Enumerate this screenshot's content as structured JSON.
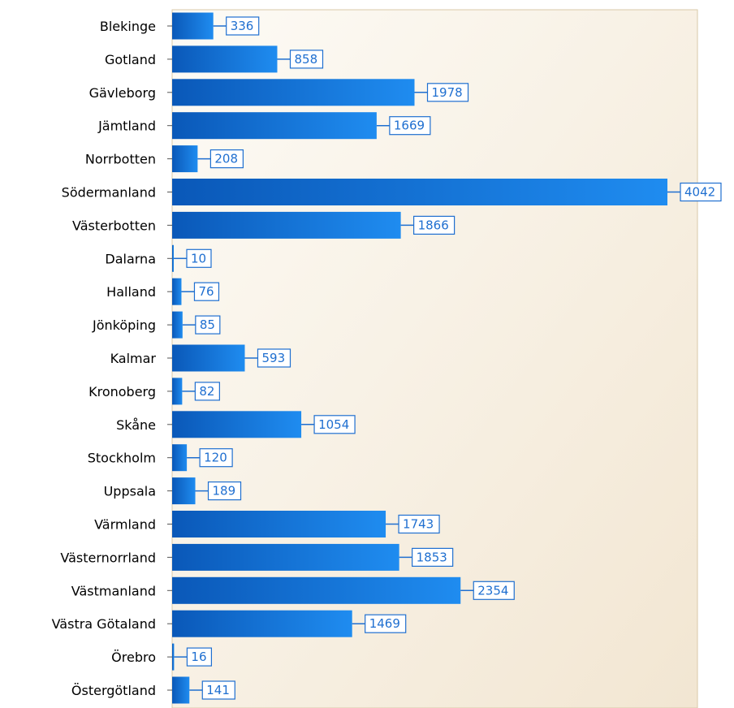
{
  "chart_data": {
    "type": "bar",
    "orientation": "horizontal",
    "categories": [
      "Blekinge",
      "Gotland",
      "Gävleborg",
      "Jämtland",
      "Norrbotten",
      "Södermanland",
      "Västerbotten",
      "Dalarna",
      "Halland",
      "Jönköping",
      "Kalmar",
      "Kronoberg",
      "Skåne",
      "Stockholm",
      "Uppsala",
      "Värmland",
      "Västernorrland",
      "Västmanland",
      "Västra Götaland",
      "Örebro",
      "Östergötland"
    ],
    "values": [
      336,
      858,
      1978,
      1669,
      208,
      4042,
      1866,
      10,
      76,
      85,
      593,
      82,
      1054,
      120,
      189,
      1743,
      1853,
      2354,
      1469,
      16,
      141
    ],
    "value_labels": [
      "336",
      "858",
      "1978",
      "1669",
      "208",
      "4042",
      "1866",
      "10",
      "76",
      "85",
      "593",
      "82",
      "1054",
      "120",
      "189",
      "1743",
      "1853",
      "2354",
      "1469",
      "16",
      "141"
    ],
    "title": "",
    "xlabel": "",
    "ylabel": "",
    "xlim": [
      0,
      4300
    ],
    "grid": false,
    "legend": "none",
    "colors": {
      "bar_dark": "#0a58b8",
      "bar_light": "#1f8cf0",
      "label_border": "#1f6fd0",
      "label_text": "#1f6fd0",
      "plot_bg_left": "#fdfbf6",
      "plot_bg_right": "#f2e6d2",
      "plot_border": "#d9c9a8"
    }
  }
}
